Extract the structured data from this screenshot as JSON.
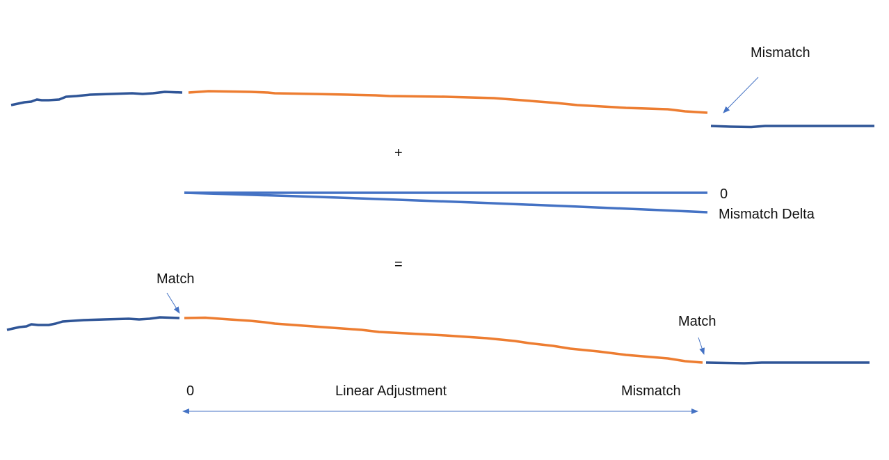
{
  "colors": {
    "original_signal": "#2F5597",
    "adjusted_segment": "#ED7D31",
    "delta_lines": "#4472C4",
    "arrows": "#4472C4"
  },
  "labels": {
    "top_mismatch": "Mismatch",
    "plus": "+",
    "delta_zero": "0",
    "delta_mismatch": "Mismatch Delta",
    "equals": "=",
    "match_left": "Match",
    "match_right": "Match",
    "axis_start": "0",
    "axis_title": "Linear Adjustment",
    "axis_end": "Mismatch"
  }
}
